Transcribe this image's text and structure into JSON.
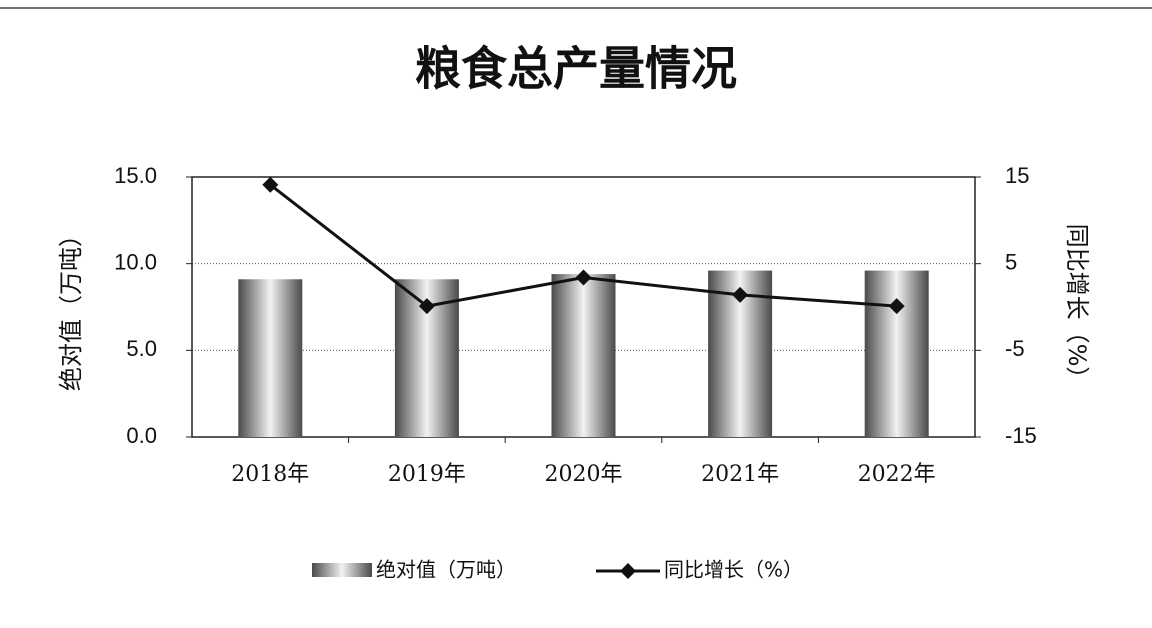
{
  "chart_data": {
    "type": "bar-line",
    "title": "粮食总产量情况",
    "y_label": "绝对值（万吨）",
    "y2_label": "同比增长（%）",
    "categories": [
      "2018年",
      "2019年",
      "2020年",
      "2021年",
      "2022年"
    ],
    "series": [
      {
        "name": "绝对值（万吨）",
        "type": "bar",
        "color": "#4a4a4a",
        "values": [
          9.1,
          9.1,
          9.4,
          9.6,
          9.6
        ]
      },
      {
        "name": "同比增长（%）",
        "type": "line",
        "axis": "y2",
        "color": "#111111",
        "values": [
          14.1,
          0.1,
          3.4,
          1.4,
          0.1
        ]
      }
    ],
    "ylim": [
      0,
      15
    ],
    "yticks": [
      {
        "value": 0,
        "label": "0.0"
      },
      {
        "value": 5,
        "label": "5.0"
      },
      {
        "value": 10,
        "label": "10.0"
      },
      {
        "value": 15,
        "label": "15.0"
      }
    ],
    "y2lim": [
      -15,
      15
    ],
    "y2ticks": [
      -15,
      -5,
      5,
      15
    ],
    "grid": true
  }
}
